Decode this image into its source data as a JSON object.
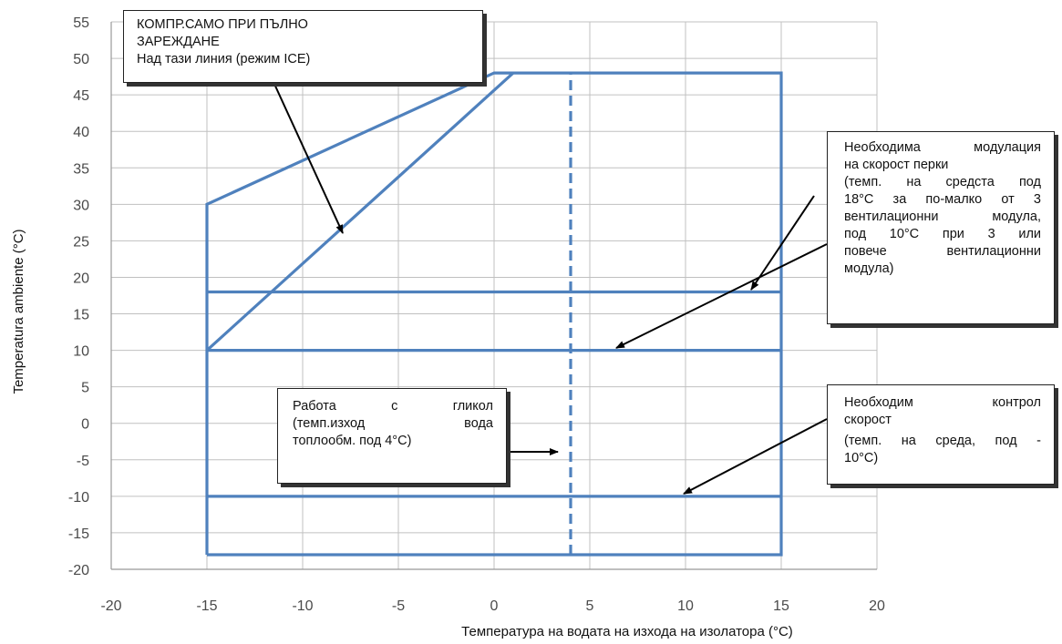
{
  "chart_data": {
    "type": "line",
    "xlabel": "Температура на водата на изхода на изолатора (°C)",
    "ylabel": "Temperatura ambiente (°C)",
    "xlim": [
      -20,
      20
    ],
    "ylim": [
      -20,
      55
    ],
    "x_ticks": [
      "-20",
      "-15",
      "-10",
      "-5",
      "0",
      "5",
      "10",
      "15",
      "20"
    ],
    "y_ticks": [
      "55",
      "50",
      "45",
      "40",
      "35",
      "30",
      "25",
      "20",
      "15",
      "10",
      "5",
      "0",
      "-5",
      "-10",
      "-15",
      "-20"
    ],
    "grid": true,
    "colors": {
      "envelope": "#4f81bd",
      "grid": "#c0c0c0",
      "arrow": "#000000"
    },
    "series": [
      {
        "kind": "envelope-outline",
        "points": [
          [
            -15,
            -18
          ],
          [
            -15,
            30
          ],
          [
            0,
            48
          ],
          [
            15,
            48
          ],
          [
            15,
            -18
          ],
          [
            -15,
            -18
          ]
        ]
      },
      {
        "kind": "ice-mode-limit",
        "points": [
          [
            -15,
            10
          ],
          [
            1,
            48
          ]
        ]
      },
      {
        "kind": "fan-modulation-upper",
        "points": [
          [
            -15,
            18
          ],
          [
            15,
            18
          ]
        ]
      },
      {
        "kind": "fan-modulation-lower",
        "points": [
          [
            -15,
            10
          ],
          [
            15,
            10
          ]
        ]
      },
      {
        "kind": "speed-control-limit",
        "points": [
          [
            -15,
            -10
          ],
          [
            15,
            -10
          ]
        ]
      },
      {
        "kind": "glycol-limit",
        "style": "dashed",
        "points": [
          [
            4,
            -18
          ],
          [
            4,
            48
          ]
        ]
      }
    ],
    "annotations": [
      {
        "id": "ice",
        "lines": [
          "КОМПР.САМО ПРИ ПЪЛНО",
          "ЗАРЕЖДАНЕ",
          "Над тази линия (режим ICE)"
        ]
      },
      {
        "id": "fan",
        "lines": [
          "Необходима модулация",
          "на скорост перки",
          "(темп. на средста под",
          "18°C за по-малко от 3",
          "вентилационни модула,",
          "под 10°C при 3 или",
          "повече вентилационни",
          "модула)"
        ]
      },
      {
        "id": "glycol",
        "lines": [
          "Работа с гликол",
          "(темп.изход вода",
          "топлообм. под 4°C)"
        ]
      },
      {
        "id": "speed",
        "lines": [
          "Необходим контрол",
          "скорост",
          "(темп. на среда, под -",
          "10°C)"
        ]
      }
    ]
  }
}
